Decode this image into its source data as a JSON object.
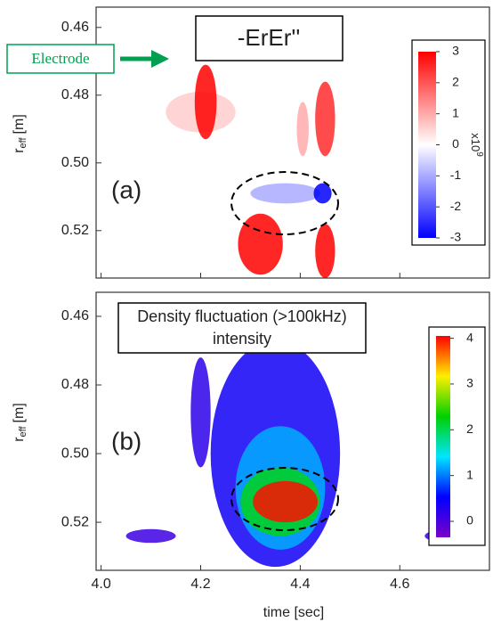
{
  "chart_data": [
    {
      "type": "contour",
      "annotation": "-ErEr''",
      "panel_label": "(a)",
      "marker_label": "Electrode",
      "ylabel": {
        "main": "r",
        "sub": "eff",
        "unit": "[m]"
      },
      "xlim": [
        3.99,
        4.78
      ],
      "xticks": [
        {
          "value": 4,
          "label": "4.0"
        },
        {
          "value": 4.2,
          "label": "4.2"
        },
        {
          "value": 4.4,
          "label": "4.4"
        },
        {
          "value": 4.6,
          "label": "4.6"
        }
      ],
      "ylim": [
        0.534,
        0.454
      ],
      "yticks": [
        0.46,
        0.48,
        {
          "value": 0.5,
          "label": "0.50"
        },
        0.52
      ],
      "colormap": [
        "#0000ff",
        "#ffffff",
        "#ff0000"
      ],
      "clim": [
        -3,
        3
      ],
      "cticks": [
        -3,
        -2,
        -1,
        0,
        1,
        2,
        3
      ],
      "colorbar_label": "x10",
      "colorbar_exponent": "9",
      "blobs": [
        {
          "x": 4.2,
          "y": 0.485,
          "dx": 0.07,
          "dy": 0.006,
          "value": 0.6
        },
        {
          "x": 4.21,
          "y": 0.482,
          "dx": 0.022,
          "dy": 0.011,
          "value": 3
        },
        {
          "x": 4.45,
          "y": 0.487,
          "dx": 0.02,
          "dy": 0.011,
          "value": 2.5
        },
        {
          "x": 4.405,
          "y": 0.49,
          "dx": 0.012,
          "dy": 0.008,
          "value": 1
        },
        {
          "x": 4.37,
          "y": 0.509,
          "dx": 0.07,
          "dy": 0.003,
          "value": -1
        },
        {
          "x": 4.445,
          "y": 0.509,
          "dx": 0.018,
          "dy": 0.003,
          "value": -3
        },
        {
          "x": 4.32,
          "y": 0.524,
          "dx": 0.045,
          "dy": 0.009,
          "value": 3
        },
        {
          "x": 4.45,
          "y": 0.526,
          "dx": 0.02,
          "dy": 0.008,
          "value": 3
        }
      ]
    },
    {
      "type": "contour",
      "annotation": [
        "Density fluctuation (>100kHz)",
        "intensity"
      ],
      "panel_label": "(b)",
      "xlabel": "time [sec]",
      "ylabel": {
        "main": "r",
        "sub": "eff",
        "unit": "[m]"
      },
      "xlim": [
        3.99,
        4.78
      ],
      "xticks": [
        {
          "value": 4,
          "label": "4.0"
        },
        {
          "value": 4.2,
          "label": "4.2"
        },
        {
          "value": 4.4,
          "label": "4.4"
        },
        {
          "value": 4.6,
          "label": "4.6"
        }
      ],
      "ylim": [
        0.534,
        0.453
      ],
      "yticks": [
        0.46,
        0.48,
        {
          "value": 0.5,
          "label": "0.50"
        },
        0.52
      ],
      "colormap": [
        "#7a00c8",
        "#0000ff",
        "#00e5ff",
        "#00d000",
        "#ffee00",
        "#ff0000"
      ],
      "clim": [
        -0.35,
        4.05
      ],
      "cticks": [
        0,
        1,
        2,
        3,
        4
      ],
      "blobs": [
        {
          "x": 4.2,
          "y": 0.488,
          "dx": 0.02,
          "dy": 0.016,
          "value": 0.2
        },
        {
          "x": 4.35,
          "y": 0.5,
          "dx": 0.13,
          "dy": 0.033,
          "value": 0.4
        },
        {
          "x": 4.36,
          "y": 0.51,
          "dx": 0.09,
          "dy": 0.018,
          "value": 1.2
        },
        {
          "x": 4.36,
          "y": 0.514,
          "dx": 0.08,
          "dy": 0.01,
          "value": 2.2
        },
        {
          "x": 4.37,
          "y": 0.514,
          "dx": 0.065,
          "dy": 0.006,
          "value": 4
        },
        {
          "x": 4.1,
          "y": 0.524,
          "dx": 0.05,
          "dy": 0.002,
          "value": 0.1
        },
        {
          "x": 4.7,
          "y": 0.524,
          "dx": 0.05,
          "dy": 0.002,
          "value": 0.1
        }
      ]
    }
  ]
}
